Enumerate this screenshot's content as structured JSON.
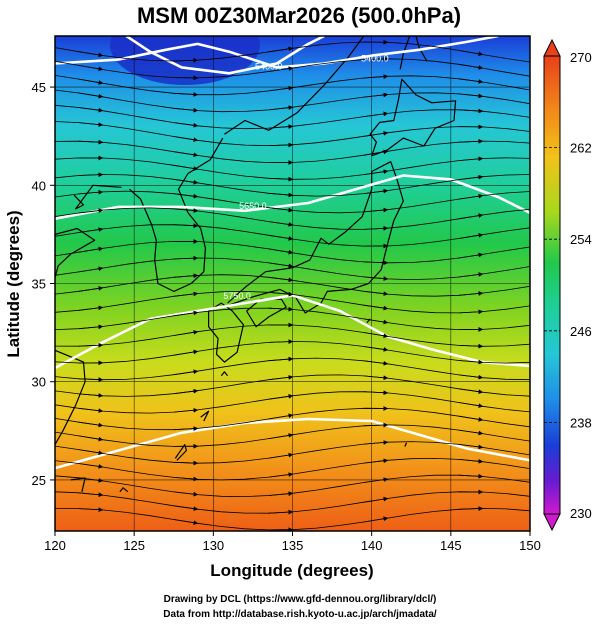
{
  "title": "MSM 00Z30Mar2026 (500.0hPa)",
  "x_axis": {
    "label": "Longitude (degrees)",
    "ticks": [
      "120",
      "125",
      "130",
      "135",
      "140",
      "145",
      "150"
    ],
    "range": [
      120,
      150
    ]
  },
  "y_axis": {
    "label": "Latitude  (degrees)",
    "ticks": [
      "25",
      "30",
      "35",
      "40",
      "45"
    ],
    "range": [
      22.4,
      47.6
    ]
  },
  "colorbar": {
    "ticks": [
      "270",
      "262",
      "254",
      "246",
      "238",
      "230"
    ],
    "range": [
      230,
      270
    ]
  },
  "contour_labels": [
    {
      "text": "5400.0",
      "lon": 133.5,
      "lat": 45.9
    },
    {
      "text": "5400.0",
      "lon": 140.2,
      "lat": 46.3
    },
    {
      "text": "5650.0",
      "lon": 132.5,
      "lat": 38.8
    },
    {
      "text": "5750.0",
      "lon": 131.5,
      "lat": 34.2
    }
  ],
  "credits": {
    "line1": "Drawing by DCL (https://www.gfd-dennou.org/library/dcl/)",
    "line2": "Data from http://database.rish.kyoto-u.ac.jp/arch/jmadata/"
  },
  "colors": {
    "field_north": "#1040d0",
    "field_mid": "#10c050",
    "field_south": "#f06010",
    "contour": "#ffffff",
    "streamline": "#000000"
  }
}
